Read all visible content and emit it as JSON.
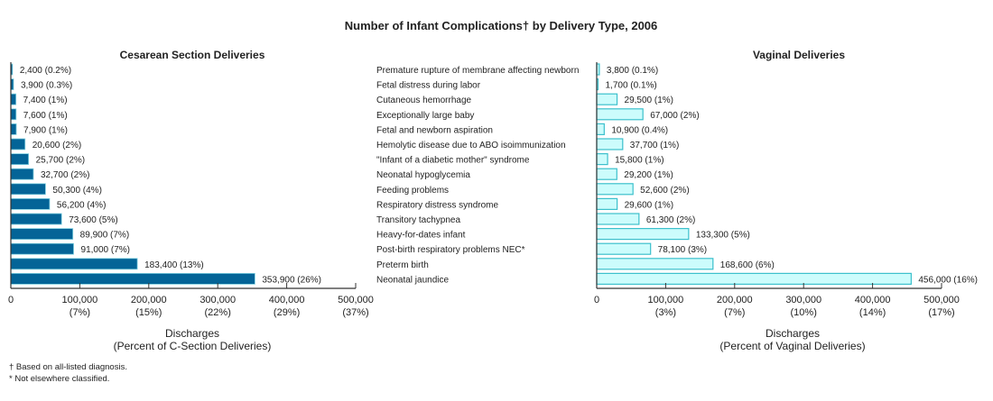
{
  "chart_data": {
    "type": "bar",
    "title": "Number of Infant Complications† by Delivery Type, 2006",
    "categories": [
      "Premature rupture of membrane affecting newborn",
      "Fetal distress during labor",
      "Cutaneous hemorrhage",
      "Exceptionally large baby",
      "Fetal and newborn aspiration",
      "Hemolytic disease due to ABO isoimmunization",
      "\"Infant of a diabetic mother\" syndrome",
      "Neonatal hypoglycemia",
      "Feeding problems",
      "Respiratory distress syndrome",
      "Transitory tachypnea",
      "Heavy-for-dates infant",
      "Post-birth respiratory problems NEC*",
      "Preterm birth",
      "Neonatal jaundice"
    ],
    "panels": [
      {
        "title": "Cesarean Section Deliveries",
        "color": "#046497",
        "stroke": "#7fd0e0",
        "values": [
          2400,
          3900,
          7400,
          7600,
          7900,
          20600,
          25700,
          32700,
          50300,
          56200,
          73600,
          89900,
          91000,
          183400,
          353900
        ],
        "labels": [
          "2,400 (0.2%)",
          "3,900 (0.3%)",
          "7,400 (1%)",
          "7,600 (1%)",
          "7,900 (1%)",
          "20,600 (2%)",
          "25,700 (2%)",
          "32,700 (2%)",
          "50,300 (4%)",
          "56,200 (4%)",
          "73,600 (5%)",
          "89,900 (7%)",
          "91,000 (7%)",
          "183,400 (13%)",
          "353,900 (26%)"
        ],
        "xlim": [
          0,
          500000
        ],
        "ticks": [
          0,
          100000,
          200000,
          300000,
          400000,
          500000
        ],
        "tick_labels": [
          "0",
          "100,000",
          "200,000",
          "300,000",
          "400,000",
          "500,000"
        ],
        "tick_pct": [
          "",
          "(7%)",
          "(15%)",
          "(22%)",
          "(29%)",
          "(37%)"
        ],
        "xlabel": "Discharges",
        "xlabel2": "(Percent of C-Section Deliveries)"
      },
      {
        "title": "Vaginal Deliveries",
        "color": "#ccfcfc",
        "stroke": "#3cc0cc",
        "values": [
          3800,
          1700,
          29500,
          67000,
          10900,
          37700,
          15800,
          29200,
          52600,
          29600,
          61300,
          133300,
          78100,
          168600,
          456000
        ],
        "labels": [
          "3,800 (0.1%)",
          "1,700 (0.1%)",
          "29,500 (1%)",
          "67,000 (2%)",
          "10,900 (0.4%)",
          "37,700 (1%)",
          "15,800 (1%)",
          "29,200 (1%)",
          "52,600 (2%)",
          "29,600 (1%)",
          "61,300 (2%)",
          "133,300 (5%)",
          "78,100 (3%)",
          "168,600 (6%)",
          "456,000 (16%)"
        ],
        "xlim": [
          0,
          500000
        ],
        "ticks": [
          0,
          100000,
          200000,
          300000,
          400000,
          500000
        ],
        "tick_labels": [
          "0",
          "100,000",
          "200,000",
          "300,000",
          "400,000",
          "500,000"
        ],
        "tick_pct": [
          "",
          "(3%)",
          "(7%)",
          "(10%)",
          "(14%)",
          "(17%)"
        ],
        "xlabel": "Discharges",
        "xlabel2": "(Percent of Vaginal Deliveries)"
      }
    ],
    "footnotes": [
      "† Based on all-listed diagnosis.",
      "* Not elsewhere classified."
    ]
  }
}
